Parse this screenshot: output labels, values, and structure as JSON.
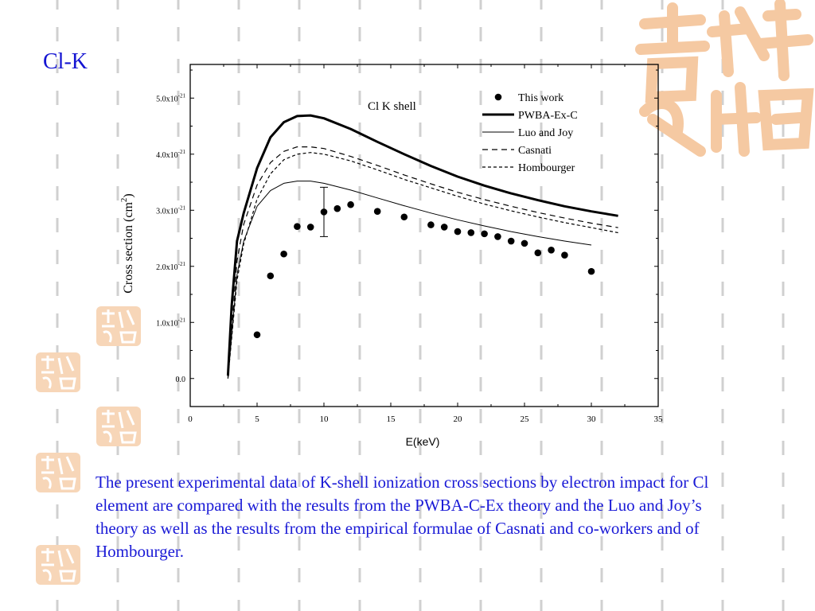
{
  "slide": {
    "title": "Cl-K",
    "caption": "The present experimental data of K-shell ionization cross sections by electron impact for Cl element are compared with the results from the PWBA-C-Ex theory and the Luo and Joy’s theory as well as the results from the empirical formulae of Casnati and co-workers and of Hombourger."
  },
  "colors": {
    "title": "#1414d2",
    "caption": "#1a1ad6",
    "seal": "#f5c9a2",
    "background_dash": "#d0d0d0"
  },
  "decorations": {
    "seal_icon": "chinese-seal-logo"
  },
  "chart_data": {
    "type": "scatter",
    "annotation": "Cl K shell",
    "xlabel": "E(keV)",
    "ylabel": "Cross section (cm",
    "ylabel_sup": "2",
    "ylabel_end": ")",
    "xlim": [
      0,
      35
    ],
    "ylim": [
      -5e-22,
      5.6e-21
    ],
    "x_ticks": [
      0,
      5,
      10,
      15,
      20,
      25,
      30,
      35
    ],
    "x_tick_labels": [
      "0",
      "5",
      "10",
      "15",
      "20",
      "25",
      "30",
      "35"
    ],
    "y_ticks": [
      0,
      1e-21,
      2e-21,
      3e-21,
      4e-21,
      5e-21
    ],
    "y_tick_labels": [
      {
        "base": "0.0",
        "exp": ""
      },
      {
        "base": "1.0x10",
        "exp": "-21"
      },
      {
        "base": "2.0x10",
        "exp": "-21"
      },
      {
        "base": "3.0x10",
        "exp": "-21"
      },
      {
        "base": "4.0x10",
        "exp": "-21"
      },
      {
        "base": "5.0x10",
        "exp": "-21"
      }
    ],
    "grid": false,
    "legend_position": "top-right",
    "series": [
      {
        "name": "This work",
        "style": "points",
        "x": [
          5,
          6,
          7,
          8,
          9,
          10,
          11,
          12,
          14,
          16,
          18,
          19,
          20,
          21,
          22,
          23,
          24,
          25,
          26,
          27,
          28,
          30
        ],
        "y": [
          7.8e-22,
          1.83e-21,
          2.22e-21,
          2.71e-21,
          2.7e-21,
          2.97e-21,
          3.03e-21,
          3.1e-21,
          2.98e-21,
          2.88e-21,
          2.74e-21,
          2.7e-21,
          2.62e-21,
          2.6e-21,
          2.58e-21,
          2.53e-21,
          2.45e-21,
          2.41e-21,
          2.24e-21,
          2.29e-21,
          2.2e-21,
          1.91e-21
        ],
        "error_bar": {
          "x": 10,
          "y_low": 2.53e-21,
          "y_high": 3.41e-21
        }
      },
      {
        "name": "PWBA-Ex-C",
        "style": "thick-solid",
        "x": [
          2.82,
          3.1,
          3.5,
          4,
          5,
          6,
          7,
          8,
          9,
          10,
          12,
          14,
          16,
          18,
          20,
          22,
          24,
          26,
          28,
          30,
          32
        ],
        "y": [
          5e-23,
          1.3e-21,
          2.45e-21,
          2.95e-21,
          3.75e-21,
          4.3e-21,
          4.57e-21,
          4.68e-21,
          4.69e-21,
          4.64e-21,
          4.45e-21,
          4.22e-21,
          4e-21,
          3.79e-21,
          3.6e-21,
          3.44e-21,
          3.3e-21,
          3.18e-21,
          3.07e-21,
          2.98e-21,
          2.9e-21
        ]
      },
      {
        "name": "Luo and Joy",
        "style": "thin-solid",
        "x": [
          2.82,
          3.5,
          4,
          5,
          6,
          7,
          8,
          9,
          10,
          12,
          14,
          16,
          18,
          20,
          22,
          24,
          26,
          28,
          30
        ],
        "y": [
          0.0,
          1.85e-21,
          2.45e-21,
          3.07e-21,
          3.35e-21,
          3.48e-21,
          3.52e-21,
          3.52e-21,
          3.48e-21,
          3.36e-21,
          3.22e-21,
          3.08e-21,
          2.95e-21,
          2.83e-21,
          2.72e-21,
          2.62e-21,
          2.53e-21,
          2.45e-21,
          2.38e-21
        ]
      },
      {
        "name": "Casnati",
        "style": "dash",
        "x": [
          2.82,
          3.5,
          4,
          5,
          6,
          7,
          8,
          9,
          10,
          12,
          14,
          16,
          18,
          20,
          22,
          24,
          26,
          28,
          30,
          32
        ],
        "y": [
          2e-23,
          2.1e-21,
          2.75e-21,
          3.45e-21,
          3.85e-21,
          4.05e-21,
          4.13e-21,
          4.13e-21,
          4.1e-21,
          3.96e-21,
          3.8e-21,
          3.63e-21,
          3.47e-21,
          3.32e-21,
          3.19e-21,
          3.07e-21,
          2.96e-21,
          2.86e-21,
          2.77e-21,
          2.69e-21
        ]
      },
      {
        "name": "Hombourger",
        "style": "short-dash",
        "x": [
          2.82,
          3.5,
          4,
          5,
          6,
          7,
          8,
          9,
          10,
          12,
          14,
          16,
          18,
          20,
          22,
          24,
          26,
          28,
          30,
          32
        ],
        "y": [
          0.0,
          1.75e-21,
          2.4e-21,
          3.2e-21,
          3.65e-21,
          3.9e-21,
          4e-21,
          4.03e-21,
          4e-21,
          3.88e-21,
          3.72e-21,
          3.55e-21,
          3.4e-21,
          3.25e-21,
          3.11e-21,
          2.99e-21,
          2.88e-21,
          2.78e-21,
          2.69e-21,
          2.6e-21
        ]
      }
    ]
  }
}
